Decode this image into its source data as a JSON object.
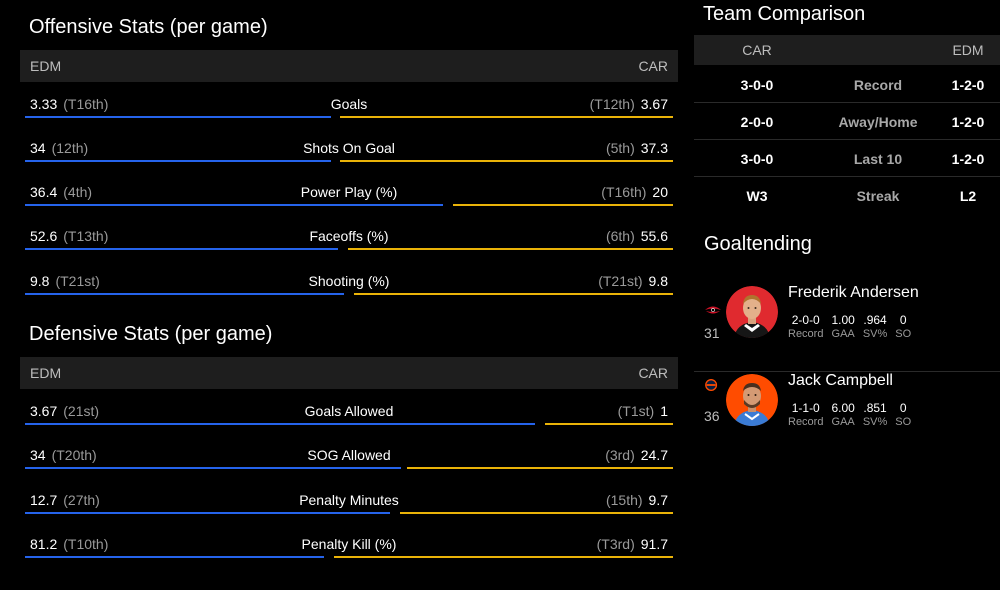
{
  "offensive": {
    "title": "Offensive Stats (per game)",
    "left_team": "EDM",
    "right_team": "CAR",
    "rows": [
      {
        "label": "Goals",
        "left_value": "3.33",
        "left_rank": "(T16th)",
        "right_value": "3.67",
        "right_rank": "(T12th)"
      },
      {
        "label": "Shots On Goal",
        "left_value": "34",
        "left_rank": "(12th)",
        "right_value": "37.3",
        "right_rank": "(5th)"
      },
      {
        "label": "Power Play (%)",
        "left_value": "36.4",
        "left_rank": "(4th)",
        "right_value": "20",
        "right_rank": "(T16th)"
      },
      {
        "label": "Faceoffs (%)",
        "left_value": "52.6",
        "left_rank": "(T13th)",
        "right_value": "55.6",
        "right_rank": "(6th)"
      },
      {
        "label": "Shooting (%)",
        "left_value": "9.8",
        "left_rank": "(T21st)",
        "right_value": "9.8",
        "right_rank": "(T21st)"
      }
    ]
  },
  "defensive": {
    "title": "Defensive Stats (per game)",
    "left_team": "EDM",
    "right_team": "CAR",
    "rows": [
      {
        "label": "Goals Allowed",
        "left_value": "3.67",
        "left_rank": "(21st)",
        "right_value": "1",
        "right_rank": "(T1st)"
      },
      {
        "label": "SOG Allowed",
        "left_value": "34",
        "left_rank": "(T20th)",
        "right_value": "24.7",
        "right_rank": "(3rd)"
      },
      {
        "label": "Penalty Minutes",
        "left_value": "12.7",
        "left_rank": "(27th)",
        "right_value": "9.7",
        "right_rank": "(15th)"
      },
      {
        "label": "Penalty Kill (%)",
        "left_value": "81.2",
        "left_rank": "(T10th)",
        "right_value": "91.7",
        "right_rank": "(T3rd)"
      }
    ]
  },
  "comparison": {
    "title": "Team Comparison",
    "left_team": "CAR",
    "right_team": "EDM",
    "rows": [
      {
        "label": "Record",
        "left": "3-0-0",
        "right": "1-2-0"
      },
      {
        "label": "Away/Home",
        "left": "2-0-0",
        "right": "1-2-0"
      },
      {
        "label": "Last 10",
        "left": "3-0-0",
        "right": "1-2-0"
      },
      {
        "label": "Streak",
        "left": "W3",
        "right": "L2"
      }
    ]
  },
  "goaltending": {
    "title": "Goaltending",
    "goalies": [
      {
        "name": "Frederik Andersen",
        "number": "31",
        "team_icon": "hurricanes-logo-icon",
        "record": "2-0-0",
        "gaa": "1.00",
        "sv": ".964",
        "so": "0",
        "record_label": "Record",
        "gaa_label": "GAA",
        "sv_label": "SV%",
        "so_label": "SO"
      },
      {
        "name": "Jack Campbell",
        "number": "36",
        "team_icon": "oilers-logo-icon",
        "record": "1-1-0",
        "gaa": "6.00",
        "sv": ".851",
        "so": "0",
        "record_label": "Record",
        "gaa_label": "GAA",
        "sv_label": "SV%",
        "so_label": "SO"
      }
    ]
  },
  "colors": {
    "left_bar": "#2563eb",
    "right_bar": "#eab308",
    "header_bg": "#1e1e1e",
    "background": "#000000"
  }
}
